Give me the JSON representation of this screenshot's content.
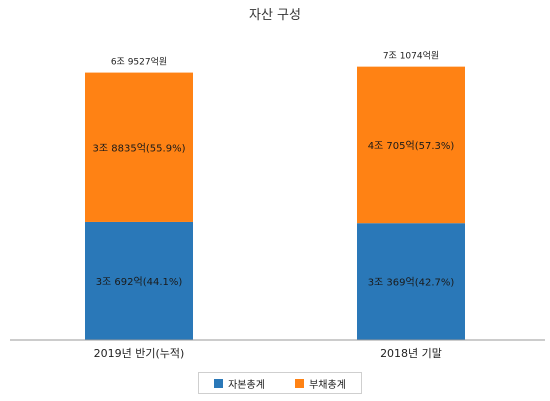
{
  "chart_data": {
    "type": "bar",
    "stacked": true,
    "title": "자산 구성",
    "categories": [
      "2019년 반기(누적)",
      "2018년 기말"
    ],
    "series": [
      {
        "name": "자본총계",
        "color": "#2a78b8",
        "values": [
          30692,
          30369
        ],
        "labels": [
          "3조 692억(44.1%)",
          "3조 369억(42.7%)"
        ]
      },
      {
        "name": "부채총계",
        "color": "#ff8214",
        "values": [
          38835,
          40705
        ],
        "labels": [
          "3조 8835억(55.9%)",
          "4조 705억(57.3%)"
        ]
      }
    ],
    "totals": [
      69527,
      71074
    ],
    "total_labels": [
      "6조 9527억원",
      "7조 1074억원"
    ],
    "unit": "억원",
    "ylim": [
      0,
      78000
    ],
    "grid": false,
    "legend_position": "bottom"
  }
}
